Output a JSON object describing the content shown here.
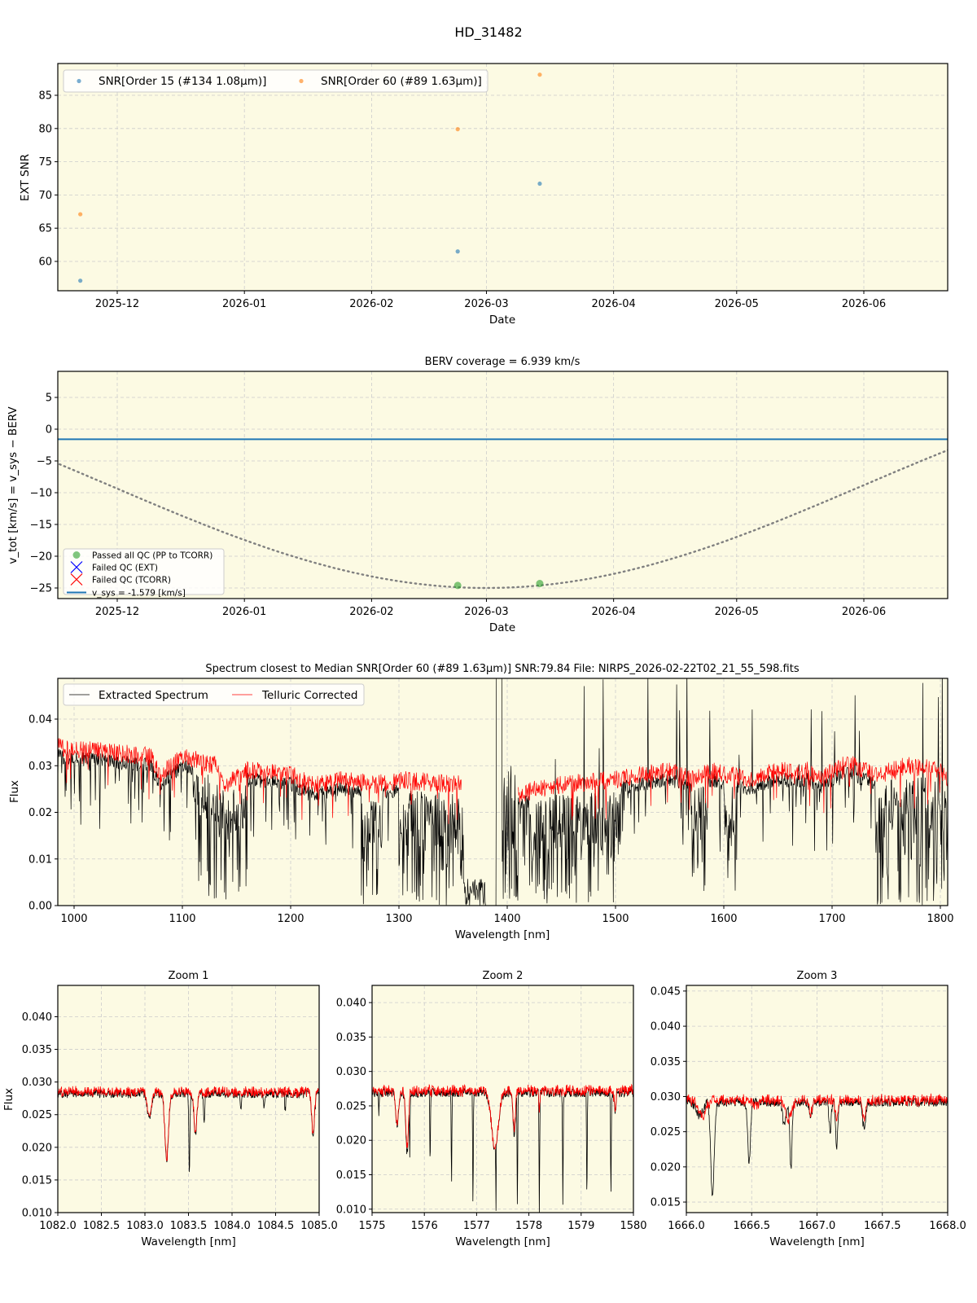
{
  "figure_title": "HD_31482",
  "colors": {
    "axes_bg": "#fcfae3",
    "grid": "#cccccc",
    "series_blue": "#1f77b4",
    "series_orange": "#ff7f0e",
    "passed_green": "#2ca02c",
    "extracted": "#000000",
    "telluric": "#ff0000",
    "berv_curve": "#808080"
  },
  "chart_data": [
    {
      "id": "snr_time",
      "type": "scatter",
      "title": "",
      "xlabel": "Date",
      "ylabel": "EXT SNR",
      "x_ticks": [
        "2025-12",
        "2026-01",
        "2026-02",
        "2026-03",
        "2026-04",
        "2026-05",
        "2026-06"
      ],
      "y_ticks": [
        60,
        65,
        70,
        75,
        80,
        85
      ],
      "ylim": [
        55.5,
        89.8
      ],
      "grid": true,
      "legend_position": "upper left",
      "series": [
        {
          "name": "SNR[Order 15 (#134 1.08μm)]",
          "color": "#1f77b4",
          "points": [
            {
              "date": "2025-11-22",
              "value": 57.1
            },
            {
              "date": "2026-02-22",
              "value": 61.5
            },
            {
              "date": "2026-03-14",
              "value": 71.7
            }
          ]
        },
        {
          "name": "SNR[Order 60 (#89 1.63μm)]",
          "color": "#ff7f0e",
          "points": [
            {
              "date": "2025-11-22",
              "value": 67.1
            },
            {
              "date": "2026-02-22",
              "value": 79.9
            },
            {
              "date": "2026-03-14",
              "value": 88.1
            }
          ]
        }
      ]
    },
    {
      "id": "berv",
      "type": "line",
      "title": "BERV coverage = 6.939 km/s",
      "xlabel": "Date",
      "ylabel": "v_tot [km/s] = v_sys − BERV",
      "x_ticks": [
        "2025-12",
        "2026-01",
        "2026-02",
        "2026-03",
        "2026-04",
        "2026-05",
        "2026-06"
      ],
      "y_ticks": [
        5,
        0,
        -5,
        -10,
        -15,
        -20,
        -25
      ],
      "ylim": [
        -26.5,
        9.2
      ],
      "grid": true,
      "legend_position": "lower left",
      "vsys": -1.579,
      "berv_curve": {
        "min_value": -25.0,
        "min_date": "2026-03-01",
        "points": [
          {
            "date": "2025-11-17",
            "value": 4.3
          },
          {
            "date": "2025-12-01",
            "value": -1.6
          },
          {
            "date": "2026-01-01",
            "value": -13.5
          },
          {
            "date": "2026-02-01",
            "value": -22.2
          },
          {
            "date": "2026-03-01",
            "value": -25.0
          },
          {
            "date": "2026-04-01",
            "value": -21.5
          },
          {
            "date": "2026-05-01",
            "value": -13.4
          },
          {
            "date": "2026-06-01",
            "value": -1.6
          },
          {
            "date": "2026-06-20",
            "value": 6.2
          }
        ]
      },
      "passed_points": [
        {
          "date": "2026-02-22",
          "value": -24.6
        },
        {
          "date": "2026-03-14",
          "value": -24.3
        }
      ],
      "legend": [
        {
          "label": "Passed all QC (PP to TCORR)",
          "marker": "circle",
          "color": "#2ca02c"
        },
        {
          "label": "Failed QC (EXT)",
          "marker": "x",
          "color": "#0000ff"
        },
        {
          "label": "Failed QC (TCORR)",
          "marker": "x",
          "color": "#ff0000"
        },
        {
          "label": "v_sys = -1.579 [km/s]",
          "marker": "line",
          "color": "#1f77b4"
        }
      ]
    },
    {
      "id": "spectrum",
      "type": "line",
      "title_parts": {
        "main": "Spectrum closest to Median SNR[Order 60 (#89 1.63μm)]",
        "snr": "SNR:79.84",
        "file": "File: NIRPS_2026-02-22T02_21_55_598.fits"
      },
      "xlabel": "Wavelength [nm]",
      "ylabel": "Flux",
      "x_ticks": [
        1000,
        1100,
        1200,
        1300,
        1400,
        1500,
        1600,
        1700,
        1800
      ],
      "y_ticks": [
        0.0,
        0.01,
        0.02,
        0.03,
        0.04
      ],
      "xlim": [
        985,
        1810
      ],
      "ylim": [
        0,
        0.0485
      ],
      "grid": true,
      "legend_position": "upper left",
      "series": [
        {
          "name": "Extracted Spectrum",
          "color": "#000000"
        },
        {
          "name": "Telluric Corrected",
          "color": "#ff0000"
        }
      ],
      "continuum": [
        [
          985,
          0.032
        ],
        [
          1070,
          0.03
        ],
        [
          1080,
          0.026
        ],
        [
          1100,
          0.03
        ],
        [
          1130,
          0.028
        ],
        [
          1140,
          0.024
        ],
        [
          1160,
          0.027
        ],
        [
          1200,
          0.026
        ],
        [
          1220,
          0.024
        ],
        [
          1250,
          0.025
        ],
        [
          1280,
          0.024
        ],
        [
          1300,
          0.025
        ],
        [
          1355,
          0.024
        ],
        [
          1410,
          0.022
        ],
        [
          1450,
          0.024
        ],
        [
          1500,
          0.025
        ],
        [
          1550,
          0.027
        ],
        [
          1570,
          0.025
        ],
        [
          1590,
          0.027
        ],
        [
          1620,
          0.025
        ],
        [
          1650,
          0.027
        ],
        [
          1680,
          0.027
        ],
        [
          1690,
          0.025
        ],
        [
          1710,
          0.029
        ],
        [
          1740,
          0.026
        ],
        [
          1770,
          0.028
        ],
        [
          1800,
          0.027
        ],
        [
          1810,
          0.024
        ]
      ],
      "telluric_bands": [
        [
          1110,
          1160
        ],
        [
          1265,
          1285
        ],
        [
          1300,
          1360
        ],
        [
          1360,
          1410
        ],
        [
          1420,
          1505
        ],
        [
          1570,
          1585
        ],
        [
          1600,
          1612
        ],
        [
          1740,
          1810
        ]
      ],
      "gap": [
        1380,
        1390
      ]
    },
    {
      "id": "zoom1",
      "type": "line",
      "title": "Zoom 1",
      "xlabel": "Wavelength [nm]",
      "ylabel": "Flux",
      "x_ticks": [
        1082.0,
        1082.5,
        1083.0,
        1083.5,
        1084.0,
        1084.5,
        1085.0
      ],
      "y_ticks": [
        0.01,
        0.015,
        0.02,
        0.025,
        0.03,
        0.035,
        0.04
      ],
      "xlim": [
        1082.0,
        1085.0
      ],
      "ylim": [
        0.01,
        0.0448
      ],
      "continuum": 0.0285,
      "lines_extracted": [
        [
          1083.05,
          0.0245,
          0.05
        ],
        [
          1083.25,
          0.0185,
          0.05
        ],
        [
          1083.51,
          0.0168,
          0.015
        ],
        [
          1083.58,
          0.0225,
          0.04
        ],
        [
          1083.68,
          0.0245,
          0.015
        ],
        [
          1084.1,
          0.026,
          0.015
        ],
        [
          1084.37,
          0.0265,
          0.015
        ],
        [
          1084.61,
          0.026,
          0.015
        ],
        [
          1084.93,
          0.0225,
          0.04
        ]
      ],
      "lines_telluric": [
        [
          1083.05,
          0.0245,
          0.05
        ],
        [
          1083.25,
          0.0185,
          0.05
        ],
        [
          1083.58,
          0.0225,
          0.04
        ],
        [
          1084.93,
          0.0225,
          0.04
        ]
      ]
    },
    {
      "id": "zoom2",
      "type": "line",
      "title": "Zoom 2",
      "xlabel": "Wavelength [nm]",
      "ylabel": "",
      "x_ticks": [
        1575,
        1576,
        1577,
        1578,
        1579,
        1580
      ],
      "y_ticks": [
        0.01,
        0.015,
        0.02,
        0.025,
        0.03,
        0.035,
        0.04
      ],
      "xlim": [
        1575,
        1580
      ],
      "ylim": [
        0.0095,
        0.0425
      ],
      "continuum": 0.0272,
      "lines_extracted": [
        [
          1575.13,
          0.0238,
          0.015
        ],
        [
          1575.48,
          0.0225,
          0.06
        ],
        [
          1575.67,
          0.0185,
          0.06
        ],
        [
          1575.72,
          0.0175,
          0.015
        ],
        [
          1576.11,
          0.0172,
          0.015
        ],
        [
          1576.52,
          0.0145,
          0.015
        ],
        [
          1576.93,
          0.0112,
          0.015
        ],
        [
          1577.37,
          0.0095,
          0.015
        ],
        [
          1577.35,
          0.019,
          0.15
        ],
        [
          1577.72,
          0.021,
          0.05
        ],
        [
          1577.78,
          0.0105,
          0.015
        ],
        [
          1578.2,
          0.0098,
          0.015
        ],
        [
          1578.65,
          0.0108,
          0.015
        ],
        [
          1579.11,
          0.0113,
          0.015
        ],
        [
          1579.57,
          0.0119,
          0.015
        ],
        [
          1579.65,
          0.0245,
          0.04
        ]
      ],
      "lines_telluric": [
        [
          1575.48,
          0.0225,
          0.06
        ],
        [
          1575.67,
          0.019,
          0.06
        ],
        [
          1577.35,
          0.0188,
          0.15
        ],
        [
          1577.72,
          0.0215,
          0.05
        ],
        [
          1578.2,
          0.0245,
          0.03
        ],
        [
          1579.65,
          0.0245,
          0.04
        ]
      ]
    },
    {
      "id": "zoom3",
      "type": "line",
      "title": "Zoom 3",
      "xlabel": "Wavelength [nm]",
      "ylabel": "",
      "x_ticks": [
        1666.0,
        1666.5,
        1667.0,
        1667.5,
        1668.0
      ],
      "y_ticks": [
        0.015,
        0.02,
        0.025,
        0.03,
        0.035,
        0.04,
        0.045
      ],
      "xlim": [
        1666.0,
        1668.0
      ],
      "ylim": [
        0.0135,
        0.0458
      ],
      "continuum": 0.0295,
      "lines_extracted": [
        [
          1666.1,
          0.0275,
          0.06
        ],
        [
          1666.2,
          0.0157,
          0.03
        ],
        [
          1666.48,
          0.021,
          0.025
        ],
        [
          1666.75,
          0.026,
          0.03
        ],
        [
          1666.8,
          0.02,
          0.02
        ],
        [
          1666.95,
          0.0275,
          0.03
        ],
        [
          1667.1,
          0.0255,
          0.02
        ],
        [
          1667.15,
          0.0232,
          0.02
        ],
        [
          1667.36,
          0.0258,
          0.03
        ]
      ],
      "lines_telluric": [
        [
          1666.12,
          0.0272,
          0.07
        ],
        [
          1666.53,
          0.0285,
          0.04
        ],
        [
          1666.78,
          0.0268,
          0.06
        ],
        [
          1666.95,
          0.0275,
          0.03
        ],
        [
          1667.15,
          0.0268,
          0.025
        ],
        [
          1667.36,
          0.0268,
          0.03
        ]
      ]
    }
  ]
}
